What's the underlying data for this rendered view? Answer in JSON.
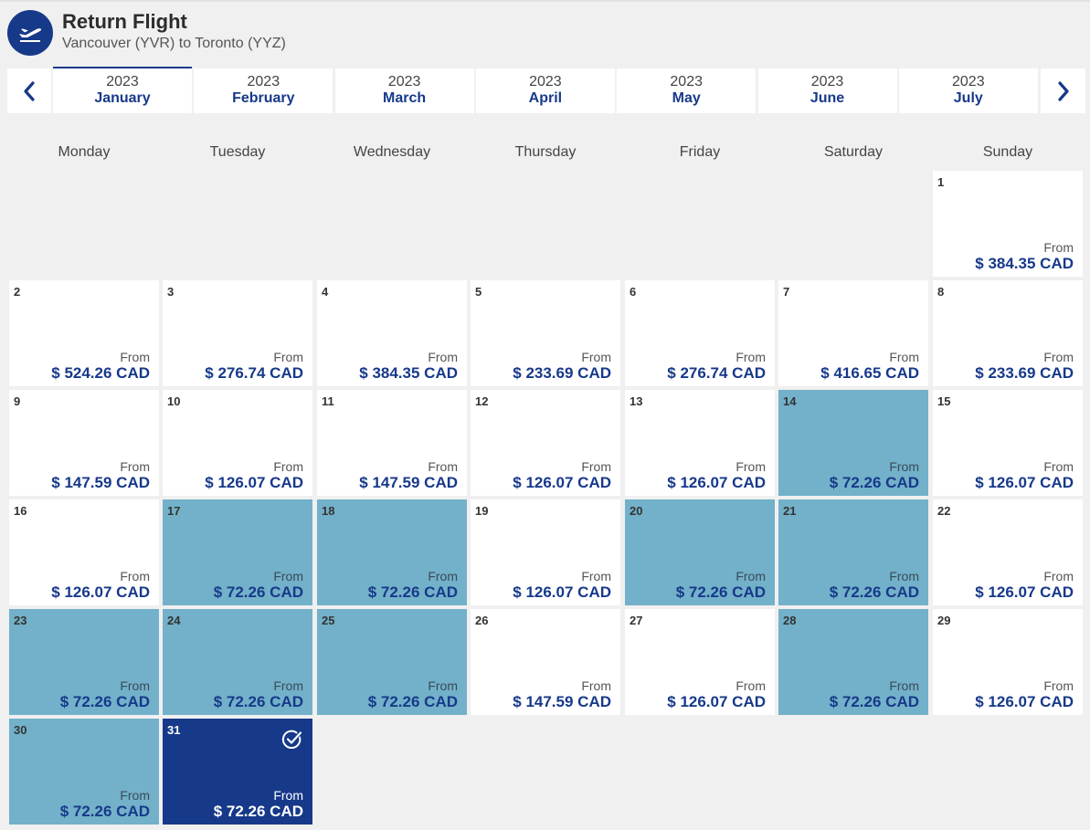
{
  "header": {
    "title": "Return Flight",
    "subtitle": "Vancouver (YVR) to Toronto (YYZ)",
    "icon": "plane-departure-icon"
  },
  "months": [
    {
      "year": "2023",
      "name": "January",
      "active": true
    },
    {
      "year": "2023",
      "name": "February"
    },
    {
      "year": "2023",
      "name": "March"
    },
    {
      "year": "2023",
      "name": "April"
    },
    {
      "year": "2023",
      "name": "May"
    },
    {
      "year": "2023",
      "name": "June"
    },
    {
      "year": "2023",
      "name": "July"
    }
  ],
  "nav": {
    "prev_icon": "chevron-left-icon",
    "next_icon": "chevron-right-icon"
  },
  "weekdays": [
    "Monday",
    "Tuesday",
    "Wednesday",
    "Thursday",
    "Friday",
    "Saturday",
    "Sunday"
  ],
  "from_label": "From",
  "colors": {
    "brand": "#17398a",
    "cheapest": "#72b1c9",
    "selected": "#17398a"
  },
  "first_weekday_index": 6,
  "days": [
    {
      "day": "1",
      "price": "$ 384.35 CAD"
    },
    {
      "day": "2",
      "price": "$ 524.26 CAD"
    },
    {
      "day": "3",
      "price": "$ 276.74 CAD"
    },
    {
      "day": "4",
      "price": "$ 384.35 CAD"
    },
    {
      "day": "5",
      "price": "$ 233.69 CAD"
    },
    {
      "day": "6",
      "price": "$ 276.74 CAD"
    },
    {
      "day": "7",
      "price": "$ 416.65 CAD"
    },
    {
      "day": "8",
      "price": "$ 233.69 CAD"
    },
    {
      "day": "9",
      "price": "$ 147.59 CAD"
    },
    {
      "day": "10",
      "price": "$ 126.07 CAD"
    },
    {
      "day": "11",
      "price": "$ 147.59 CAD"
    },
    {
      "day": "12",
      "price": "$ 126.07 CAD"
    },
    {
      "day": "13",
      "price": "$ 126.07 CAD"
    },
    {
      "day": "14",
      "price": "$ 72.26 CAD",
      "cheapest": true
    },
    {
      "day": "15",
      "price": "$ 126.07 CAD"
    },
    {
      "day": "16",
      "price": "$ 126.07 CAD"
    },
    {
      "day": "17",
      "price": "$ 72.26 CAD",
      "cheapest": true
    },
    {
      "day": "18",
      "price": "$ 72.26 CAD",
      "cheapest": true
    },
    {
      "day": "19",
      "price": "$ 126.07 CAD"
    },
    {
      "day": "20",
      "price": "$ 72.26 CAD",
      "cheapest": true
    },
    {
      "day": "21",
      "price": "$ 72.26 CAD",
      "cheapest": true
    },
    {
      "day": "22",
      "price": "$ 126.07 CAD"
    },
    {
      "day": "23",
      "price": "$ 72.26 CAD",
      "cheapest": true
    },
    {
      "day": "24",
      "price": "$ 72.26 CAD",
      "cheapest": true
    },
    {
      "day": "25",
      "price": "$ 72.26 CAD",
      "cheapest": true
    },
    {
      "day": "26",
      "price": "$ 147.59 CAD"
    },
    {
      "day": "27",
      "price": "$ 126.07 CAD"
    },
    {
      "day": "28",
      "price": "$ 72.26 CAD",
      "cheapest": true
    },
    {
      "day": "29",
      "price": "$ 126.07 CAD"
    },
    {
      "day": "30",
      "price": "$ 72.26 CAD",
      "cheapest": true
    },
    {
      "day": "31",
      "price": "$ 72.26 CAD",
      "cheapest": true,
      "selected": true
    }
  ]
}
